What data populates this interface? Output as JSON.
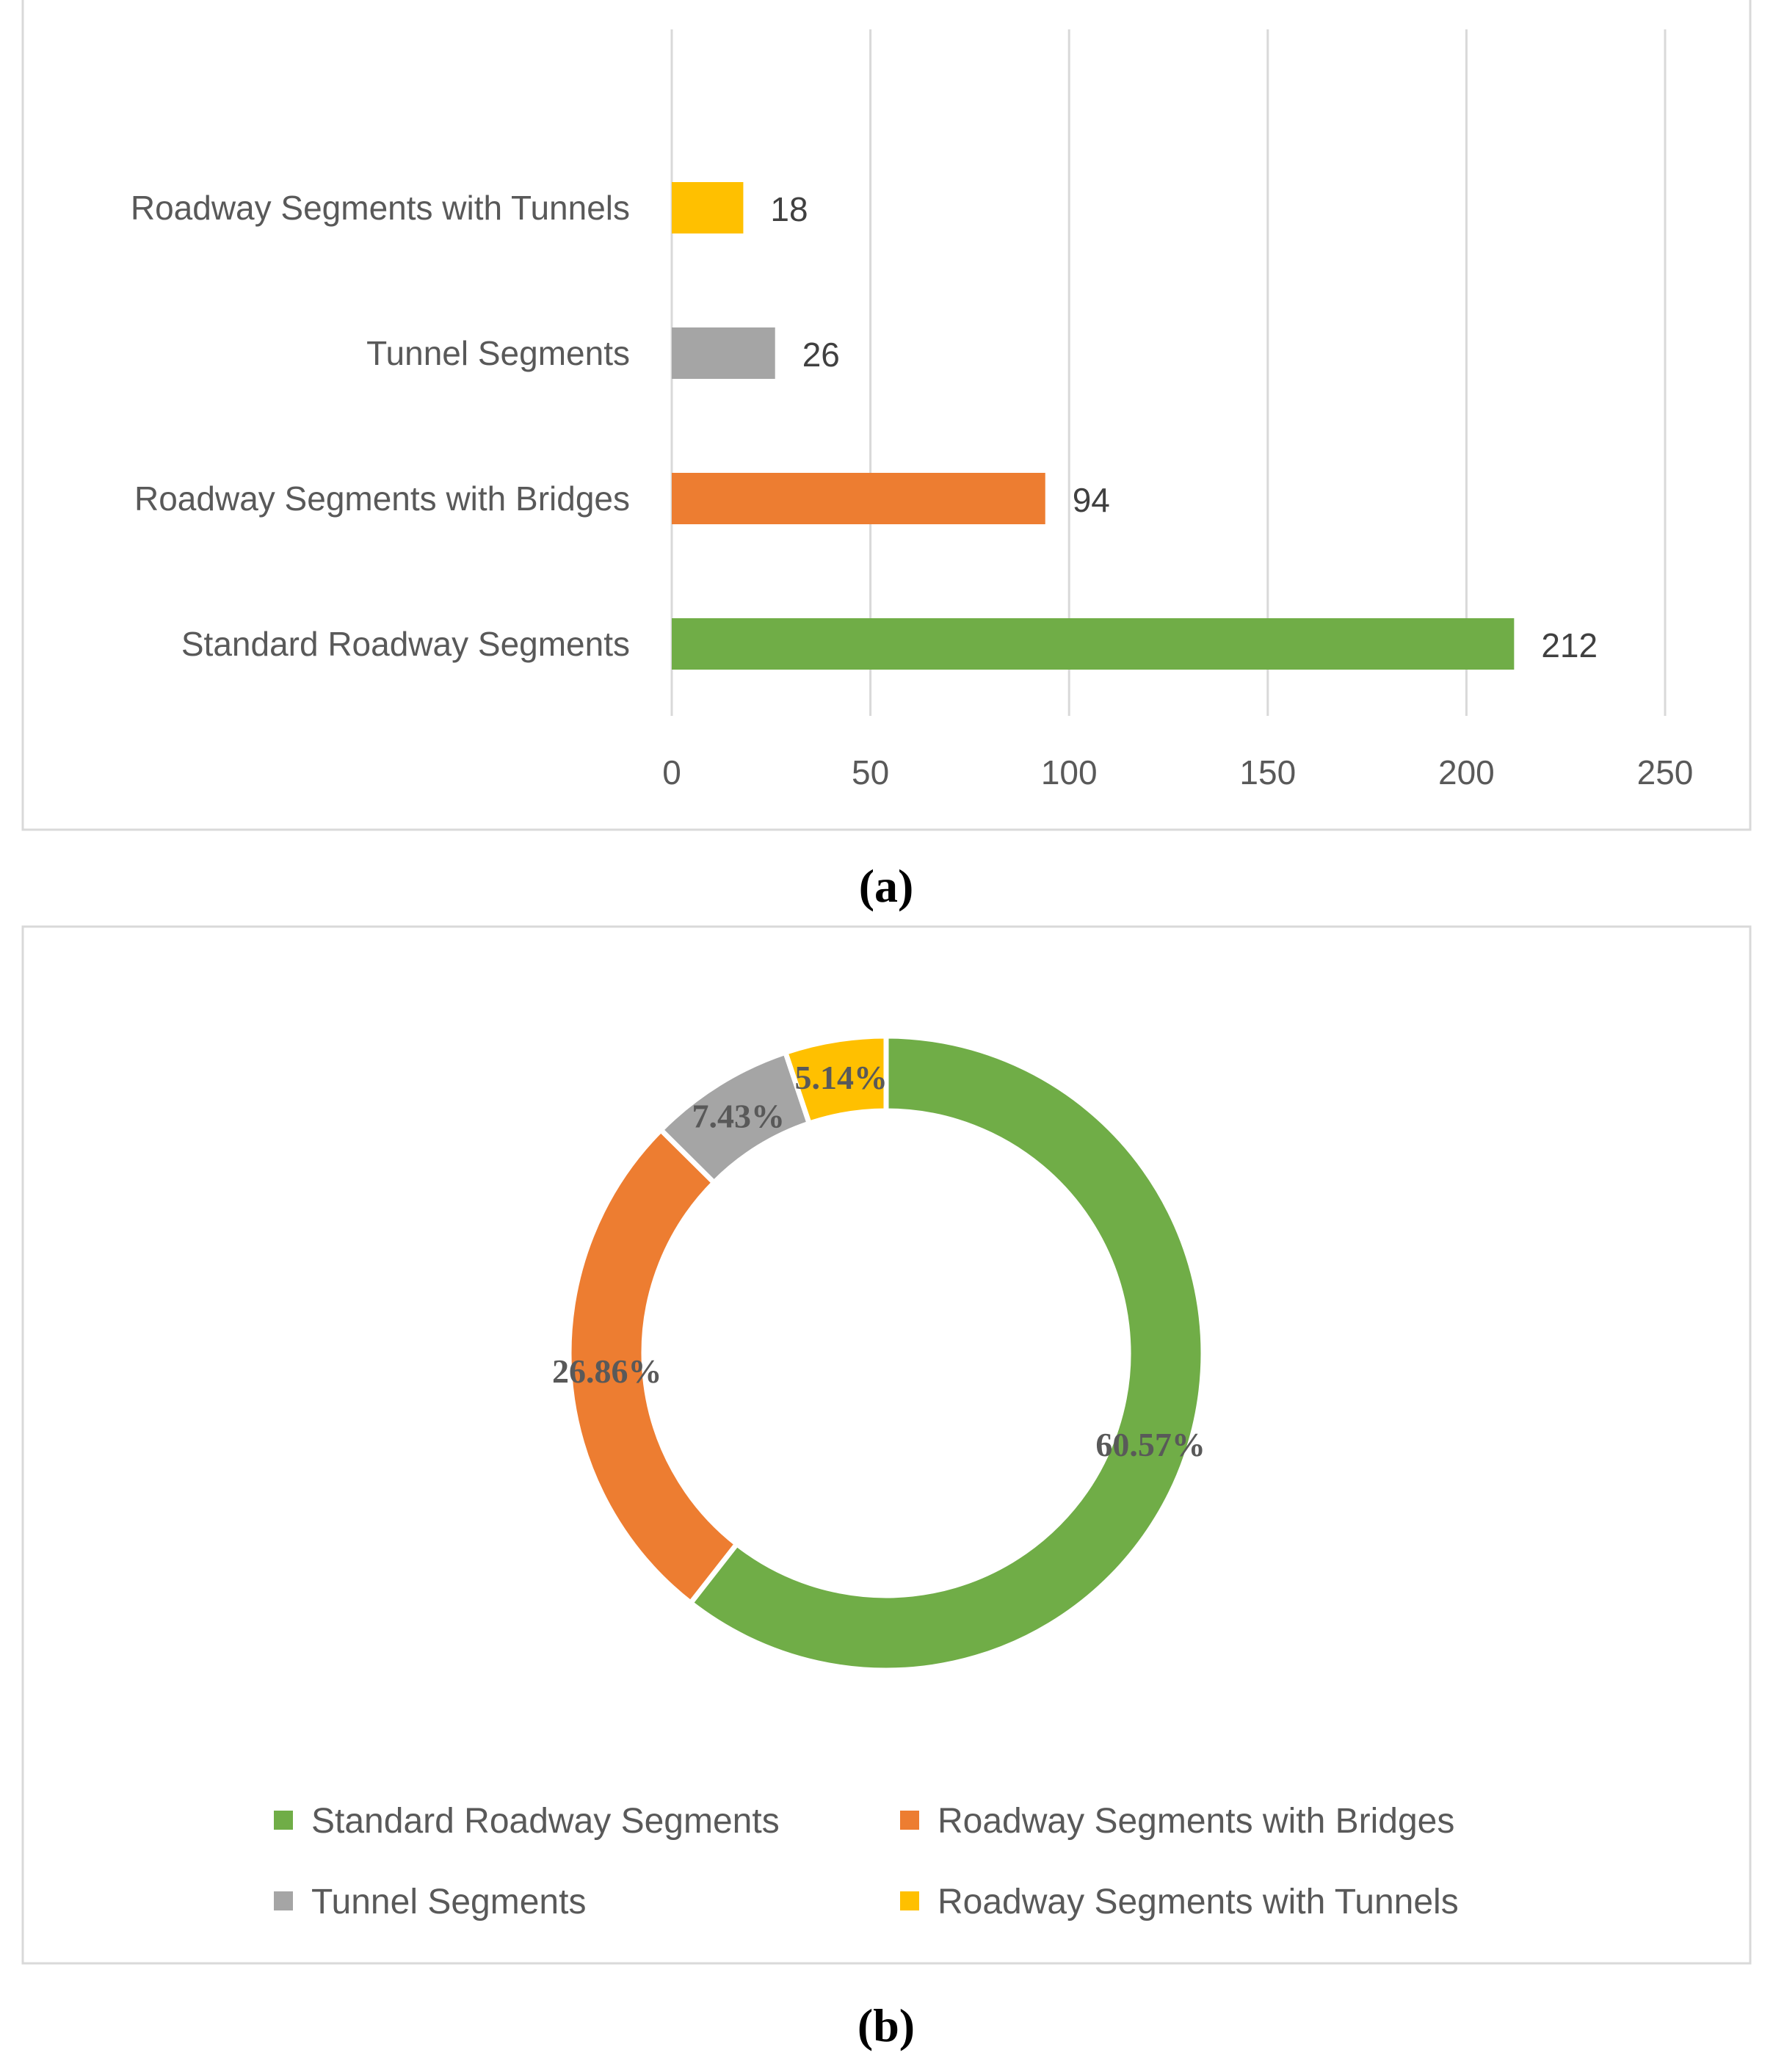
{
  "chart_data": [
    {
      "type": "bar",
      "orientation": "horizontal",
      "panel_label": "(a)",
      "categories": [
        "Roadway Segments with Tunnels",
        "Tunnel Segments",
        "Roadway Segments with Bridges",
        "Standard Roadway Segments"
      ],
      "values": [
        18,
        26,
        94,
        212
      ],
      "colors": [
        "#FFC000",
        "#A5A5A5",
        "#ED7D31",
        "#70AD47"
      ],
      "xlim": [
        0,
        250
      ],
      "xticks": [
        "0",
        "50",
        "100",
        "150",
        "200",
        "250"
      ],
      "grid": true,
      "title": "",
      "xlabel": "",
      "ylabel": ""
    },
    {
      "type": "pie",
      "variant": "donut",
      "panel_label": "(b)",
      "categories": [
        "Standard Roadway Segments",
        "Roadway Segments with Bridges",
        "Tunnel Segments",
        "Roadway Segments with Tunnels"
      ],
      "values": [
        60.57,
        26.86,
        7.43,
        5.14
      ],
      "labels": [
        "60.57%",
        "26.86%",
        "7.43%",
        "5.14%"
      ],
      "colors": [
        "#70AD47",
        "#ED7D31",
        "#A5A5A5",
        "#FFC000"
      ],
      "legend": "bottom",
      "title": ""
    }
  ]
}
